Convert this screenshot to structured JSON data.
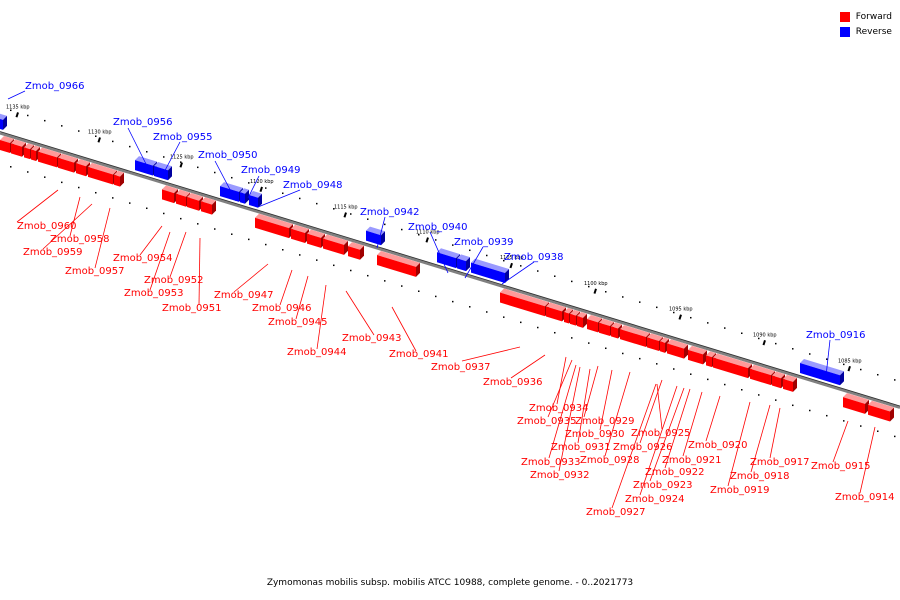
{
  "colors": {
    "forward": "#ff0000",
    "reverse": "#0000ff",
    "backbone": "#808080"
  },
  "legend": [
    {
      "label": "Forward",
      "strand": "forward"
    },
    {
      "label": "Reverse",
      "strand": "reverse"
    }
  ],
  "caption": "Zymomonas mobilis subsp. mobilis ATCC 10988, complete genome. - 0..2021773",
  "ticks": [
    {
      "label": "1135 kbp"
    },
    {
      "label": "1130 kbp"
    },
    {
      "label": "1125 kbp"
    },
    {
      "label": "1120 kbp"
    },
    {
      "label": "1115 kbp"
    },
    {
      "label": "1110 kbp"
    },
    {
      "label": "1105 kbp"
    },
    {
      "label": "1100 kbp"
    },
    {
      "label": "1095 kbp"
    },
    {
      "label": "1090 kbp"
    },
    {
      "label": "1085 kbp"
    }
  ],
  "genes": [
    "Zmob_0966",
    "Zmob_0956",
    "Zmob_0955",
    "Zmob_0950",
    "Zmob_0949",
    "Zmob_0948",
    "Zmob_0942",
    "Zmob_0940",
    "Zmob_0939",
    "Zmob_0938",
    "Zmob_0916",
    "Zmob_0960",
    "Zmob_0958",
    "Zmob_0959",
    "Zmob_0957",
    "Zmob_0954",
    "Zmob_0952",
    "Zmob_0953",
    "Zmob_0951",
    "Zmob_0947",
    "Zmob_0946",
    "Zmob_0945",
    "Zmob_0944",
    "Zmob_0943",
    "Zmob_0941",
    "Zmob_0937",
    "Zmob_0936",
    "Zmob_0934",
    "Zmob_0935",
    "Zmob_0929",
    "Zmob_0930",
    "Zmob_0931",
    "Zmob_0926",
    "Zmob_0933",
    "Zmob_0928",
    "Zmob_0932",
    "Zmob_0925",
    "Zmob_0921",
    "Zmob_0922",
    "Zmob_0923",
    "Zmob_0924",
    "Zmob_0927",
    "Zmob_0920",
    "Zmob_0917",
    "Zmob_0918",
    "Zmob_0919",
    "Zmob_0915",
    "Zmob_0914"
  ]
}
